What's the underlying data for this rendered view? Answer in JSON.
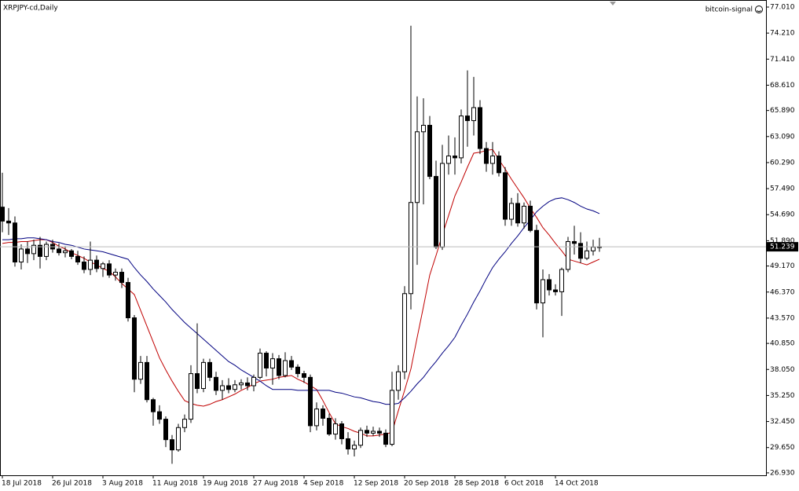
{
  "chart_data": {
    "type": "candlestick",
    "title": "XRPJPY-cd,Daily",
    "watermark": "bitcoin-signal",
    "categories": [
      "18 Jul 2018",
      null,
      null,
      null,
      null,
      null,
      null,
      null,
      "26 Jul 2018",
      null,
      null,
      null,
      null,
      null,
      null,
      null,
      "3 Aug 2018",
      null,
      null,
      null,
      null,
      null,
      null,
      null,
      "11 Aug 2018",
      null,
      null,
      null,
      null,
      null,
      null,
      null,
      "19 Aug 2018",
      null,
      null,
      null,
      null,
      null,
      null,
      null,
      "27 Aug 2018",
      null,
      null,
      null,
      null,
      null,
      null,
      null,
      "4 Sep 2018",
      null,
      null,
      null,
      null,
      null,
      null,
      null,
      "12 Sep 2018",
      null,
      null,
      null,
      null,
      null,
      null,
      null,
      "20 Sep 2018",
      null,
      null,
      null,
      null,
      null,
      null,
      null,
      "28 Sep 2018",
      null,
      null,
      null,
      null,
      null,
      null,
      null,
      "6 Oct 2018",
      null,
      null,
      null,
      null,
      null,
      null,
      null,
      "14 Oct 2018",
      null,
      null,
      null,
      null,
      null,
      null,
      null
    ],
    "open": [
      55.5,
      54.0,
      53.8,
      49.6,
      51.0,
      50.5,
      51.4,
      50.2,
      51.5,
      51.0,
      50.6,
      50.8,
      50.2,
      49.6,
      48.8,
      49.8,
      48.9,
      49.4,
      48.2,
      48.5,
      47.4,
      43.6,
      37.0,
      38.8,
      34.8,
      33.5,
      32.7,
      30.5,
      29.4,
      31.8,
      32.7,
      37.6,
      36.0,
      38.8,
      37.2,
      35.8,
      36.3,
      35.9,
      36.4,
      36.6,
      36.3,
      37.2,
      39.8,
      38.2,
      39.2,
      37.4,
      39.0,
      38.3,
      37.6,
      37.2,
      32.0,
      33.8,
      32.8,
      31.1,
      32.2,
      30.6,
      29.5,
      29.9,
      31.5,
      31.2,
      31.4,
      31.2,
      30.0,
      35.8,
      37.8,
      46.2,
      56.0,
      63.6,
      64.3,
      58.8,
      51.2,
      60.2,
      61.0,
      60.8,
      65.3,
      64.8,
      66.2,
      61.8,
      60.2,
      61.0,
      59.2,
      54.2,
      55.9,
      53.8,
      55.6,
      53.0,
      45.2,
      47.7,
      46.6,
      46.4,
      48.8,
      51.8,
      51.6,
      50.0,
      50.8,
      51.2
    ],
    "high": [
      59.2,
      55.4,
      54.5,
      51.5,
      51.8,
      52.0,
      52.3,
      51.8,
      52.0,
      51.6,
      51.3,
      51.0,
      50.8,
      50.2,
      51.8,
      50.3,
      49.6,
      49.8,
      48.9,
      48.9,
      47.9,
      43.9,
      39.5,
      39.5,
      35.0,
      34.2,
      33.0,
      31.0,
      32.2,
      33.2,
      38.5,
      43.0,
      39.2,
      39.2,
      37.8,
      36.9,
      37.1,
      36.9,
      37.0,
      37.2,
      37.5,
      40.3,
      40.0,
      39.8,
      39.6,
      39.9,
      39.5,
      38.6,
      37.9,
      37.5,
      34.5,
      34.2,
      33.3,
      32.8,
      32.5,
      31.3,
      30.4,
      31.8,
      32.0,
      31.9,
      31.8,
      31.6,
      37.8,
      38.5,
      47.0,
      75.0,
      67.4,
      67.2,
      65.3,
      60.5,
      62.2,
      63.2,
      63.0,
      66.0,
      70.2,
      69.5,
      67.0,
      62.5,
      62.5,
      61.5,
      59.8,
      56.5,
      57.0,
      56.0,
      56.2,
      53.6,
      48.8,
      48.3,
      47.2,
      49.0,
      52.3,
      53.5,
      52.8,
      51.8,
      52.0,
      52.2
    ],
    "low": [
      52.8,
      52.5,
      49.1,
      48.8,
      49.5,
      49.8,
      48.9,
      49.8,
      50.6,
      50.3,
      50.1,
      49.9,
      49.3,
      48.4,
      48.2,
      48.5,
      48.0,
      47.9,
      47.6,
      46.8,
      43.2,
      35.6,
      36.5,
      34.5,
      32.0,
      32.2,
      29.7,
      27.9,
      29.2,
      31.3,
      32.3,
      35.5,
      35.6,
      36.8,
      35.3,
      34.8,
      35.5,
      35.6,
      35.9,
      35.8,
      35.7,
      37.0,
      37.3,
      36.4,
      37.0,
      37.2,
      38.0,
      37.2,
      36.6,
      31.3,
      31.5,
      32.0,
      30.9,
      30.5,
      30.0,
      28.9,
      28.7,
      29.6,
      30.8,
      30.9,
      30.8,
      29.7,
      29.8,
      34.8,
      37.0,
      44.5,
      49.3,
      55.8,
      58.5,
      51.0,
      50.9,
      59.0,
      59.0,
      60.2,
      62.0,
      63.2,
      61.2,
      59.3,
      59.0,
      58.8,
      53.5,
      53.5,
      53.4,
      53.2,
      52.8,
      44.5,
      41.5,
      46.0,
      46.0,
      43.8,
      48.5,
      50.4,
      49.5,
      49.8,
      50.3,
      50.7
    ],
    "close": [
      54.0,
      53.8,
      49.6,
      51.0,
      50.5,
      51.4,
      50.2,
      51.5,
      51.0,
      50.6,
      50.8,
      50.2,
      49.6,
      48.8,
      49.8,
      48.9,
      49.4,
      48.2,
      48.5,
      47.4,
      43.6,
      37.0,
      38.8,
      34.8,
      33.5,
      32.7,
      30.5,
      29.4,
      31.8,
      32.7,
      37.6,
      36.0,
      38.8,
      37.2,
      35.8,
      36.3,
      35.9,
      36.4,
      36.6,
      36.3,
      37.2,
      39.8,
      38.2,
      39.2,
      37.4,
      39.0,
      38.3,
      37.6,
      37.2,
      32.0,
      33.8,
      32.8,
      31.1,
      32.2,
      30.6,
      29.5,
      29.9,
      31.5,
      31.2,
      31.4,
      31.2,
      30.0,
      35.8,
      37.8,
      46.2,
      56.0,
      63.6,
      64.3,
      58.8,
      51.2,
      60.2,
      61.0,
      60.8,
      65.3,
      64.8,
      66.2,
      61.8,
      60.2,
      61.0,
      59.2,
      54.2,
      55.9,
      53.8,
      55.6,
      53.0,
      45.2,
      47.7,
      46.6,
      46.4,
      48.8,
      51.8,
      51.6,
      50.0,
      50.8,
      51.2,
      51.239
    ],
    "last_price_label": "51.239",
    "up_color": "#ffffff",
    "down_color": "#000000",
    "lines": [
      {
        "color": "#c00000",
        "values": [
          51.6,
          51.7,
          51.7,
          51.8,
          51.8,
          51.9,
          52.0,
          52.0,
          51.7,
          51.3,
          51.0,
          50.6,
          50.3,
          50.0,
          49.6,
          49.3,
          48.9,
          48.6,
          48.0,
          47.3,
          46.7,
          46.1,
          44.4,
          42.7,
          41.0,
          39.3,
          38.0,
          36.8,
          35.7,
          34.7,
          34.4,
          34.2,
          34.1,
          34.3,
          34.6,
          34.8,
          35.1,
          35.4,
          35.8,
          36.1,
          36.5,
          36.8,
          36.9,
          37.0,
          37.2,
          37.3,
          37.4,
          37.0,
          36.7,
          36.3,
          35.9,
          34.7,
          33.4,
          32.2,
          31.9,
          31.7,
          31.4,
          31.2,
          30.9,
          30.9,
          31.0,
          31.1,
          31.3,
          33.6,
          35.8,
          38.1,
          41.5,
          44.8,
          48.2,
          50.3,
          52.5,
          54.6,
          56.7,
          58.2,
          59.8,
          61.3,
          61.4,
          61.6,
          61.7,
          60.6,
          59.6,
          58.5,
          57.5,
          56.5,
          55.4,
          54.4,
          53.3,
          52.5,
          51.6,
          50.8,
          49.9,
          49.7,
          49.5,
          49.3,
          49.6,
          49.9
        ]
      },
      {
        "color": "#000080",
        "values": [
          52.0,
          52.0,
          52.1,
          52.1,
          52.2,
          52.2,
          52.1,
          52.0,
          51.8,
          51.7,
          51.5,
          51.4,
          51.2,
          51.0,
          50.9,
          50.8,
          50.7,
          50.5,
          50.3,
          50.1,
          49.9,
          49.0,
          48.2,
          47.5,
          46.7,
          46.0,
          45.3,
          44.5,
          43.8,
          43.1,
          42.5,
          41.9,
          41.3,
          40.7,
          40.1,
          39.5,
          38.9,
          38.5,
          38.0,
          37.6,
          37.2,
          36.8,
          36.3,
          35.9,
          35.9,
          35.9,
          35.9,
          35.8,
          35.8,
          35.8,
          35.8,
          35.8,
          35.8,
          35.6,
          35.5,
          35.3,
          35.1,
          35.0,
          34.8,
          34.6,
          34.5,
          34.3,
          34.3,
          34.4,
          35.0,
          35.7,
          36.5,
          37.2,
          38.1,
          38.9,
          39.8,
          40.6,
          41.5,
          42.8,
          44.0,
          45.3,
          46.5,
          47.8,
          49.0,
          49.9,
          50.7,
          51.6,
          52.4,
          53.3,
          54.1,
          55.0,
          55.6,
          56.1,
          56.4,
          56.5,
          56.3,
          56.0,
          55.6,
          55.3,
          55.1,
          54.8
        ]
      }
    ],
    "ylim": [
      26.67,
      77.6
    ],
    "yticks": [
      {
        "value": 77.01,
        "label": "77.010"
      },
      {
        "value": 74.21,
        "label": "74.210"
      },
      {
        "value": 71.41,
        "label": "71.410"
      },
      {
        "value": 68.61,
        "label": "68.610"
      },
      {
        "value": 65.89,
        "label": "65.890"
      },
      {
        "value": 63.09,
        "label": "63.090"
      },
      {
        "value": 60.29,
        "label": "60.290"
      },
      {
        "value": 57.49,
        "label": "57.490"
      },
      {
        "value": 54.69,
        "label": "54.690"
      },
      {
        "value": 51.89,
        "label": "51.890"
      },
      {
        "value": 49.17,
        "label": "49.170"
      },
      {
        "value": 46.37,
        "label": "46.370"
      },
      {
        "value": 43.57,
        "label": "43.570"
      },
      {
        "value": 40.85,
        "label": "40.850"
      },
      {
        "value": 38.05,
        "label": "38.050"
      },
      {
        "value": 35.25,
        "label": "35.250"
      },
      {
        "value": 32.45,
        "label": "32.450"
      },
      {
        "value": 29.65,
        "label": "29.650"
      },
      {
        "value": 26.93,
        "label": "26.930"
      }
    ],
    "grid": false
  }
}
